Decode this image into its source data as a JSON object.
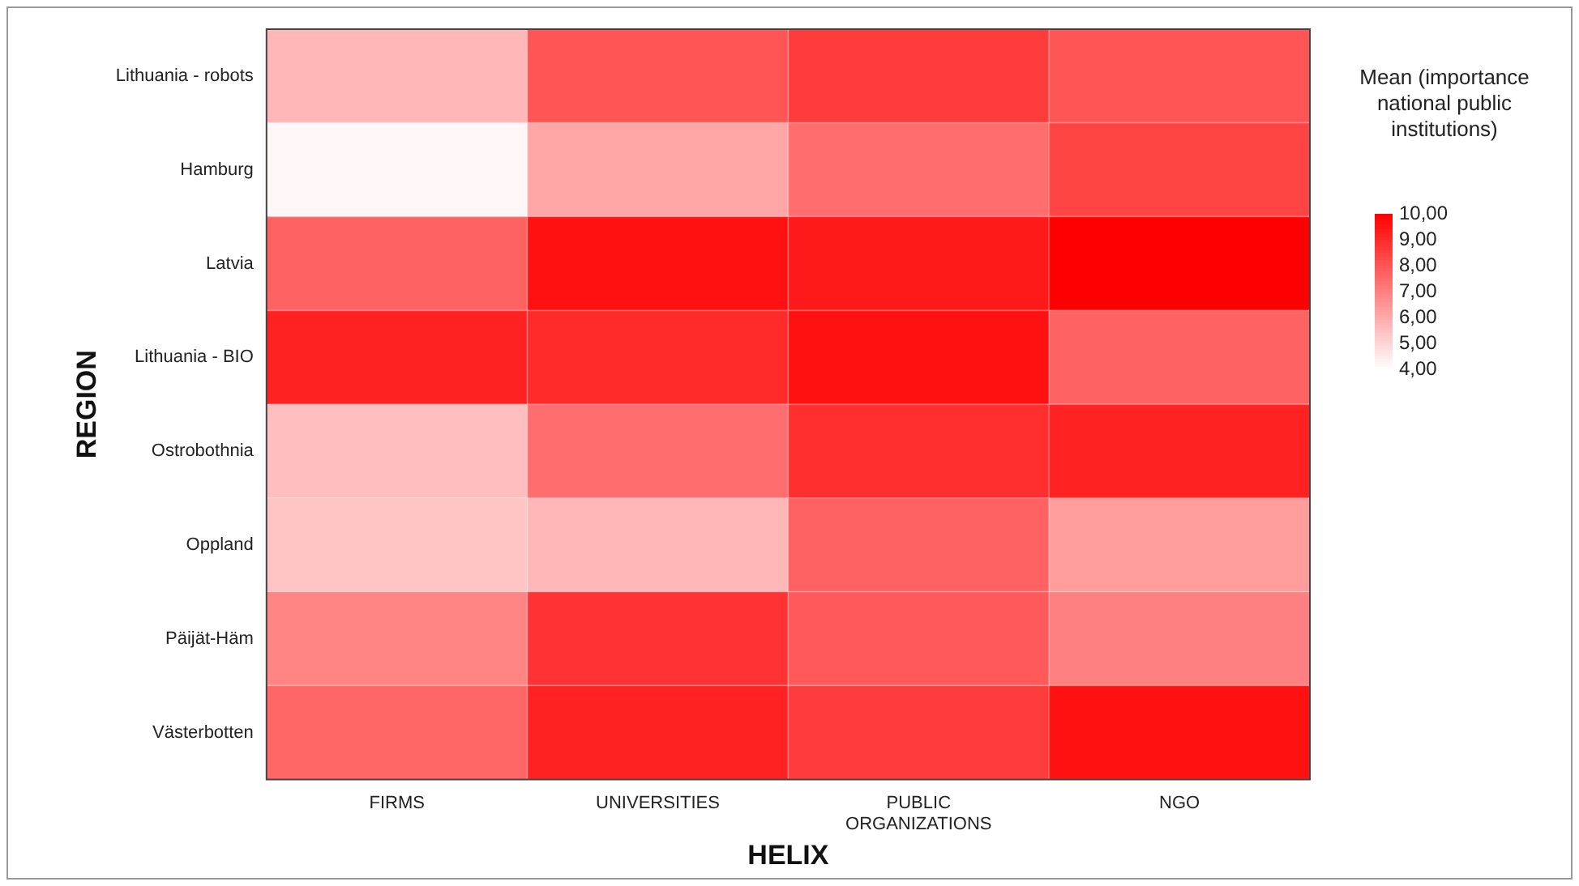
{
  "chart_data": {
    "type": "heatmap",
    "xlabel": "HELIX",
    "ylabel": "REGION",
    "clabel": "Mean (importance national public institutions)",
    "color": "#ff0000",
    "categories": [
      "FIRMS",
      "UNIVERSITIES",
      "PUBLIC ORGANIZATIONS",
      "NGO"
    ],
    "y_categories": [
      "Lithuania - robots",
      "Hamburg",
      "Latvia",
      "Lithuania - BIO",
      "Ostrobothnia",
      "Oppland",
      "Päijät-Häm",
      "Västerbotten"
    ],
    "cells": [
      [
        5.7,
        8.0,
        8.6,
        8.0
      ],
      [
        4.2,
        6.1,
        7.4,
        8.4
      ],
      [
        7.7,
        9.6,
        9.4,
        10.0
      ],
      [
        9.2,
        9.0,
        9.6,
        7.7
      ],
      [
        5.5,
        7.4,
        8.9,
        9.2
      ],
      [
        5.4,
        5.7,
        7.7,
        6.3
      ],
      [
        6.9,
        8.8,
        7.9,
        7.0
      ],
      [
        7.6,
        9.2,
        8.6,
        9.6
      ]
    ],
    "clim": [
      4,
      10
    ],
    "cticks": [
      {
        "value": 10,
        "label": "10,00"
      },
      {
        "value": 9,
        "label": "9,00"
      },
      {
        "value": 8,
        "label": "8,00"
      },
      {
        "value": 7,
        "label": "7,00"
      },
      {
        "value": 6,
        "label": "6,00"
      },
      {
        "value": 5,
        "label": "5,00"
      },
      {
        "value": 4,
        "label": "4,00"
      }
    ]
  }
}
